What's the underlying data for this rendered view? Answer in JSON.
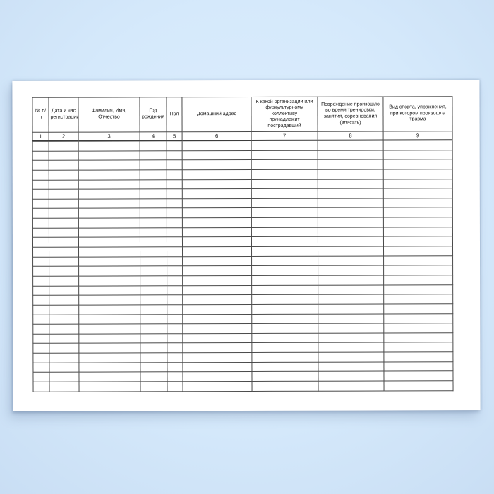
{
  "colors": {
    "backdrop": "#d5e9fb",
    "paper": "#ffffff",
    "grid_line": "#4a4a4a",
    "text": "#141414"
  },
  "table": {
    "columns": [
      {
        "number": "1",
        "header": "№ п/п"
      },
      {
        "number": "2",
        "header": "Дата и час\nрегистрации"
      },
      {
        "number": "3",
        "header": "Фамилия, Имя,\nОтчество"
      },
      {
        "number": "4",
        "header": "Год\nрождения"
      },
      {
        "number": "5",
        "header": "Пол"
      },
      {
        "number": "6",
        "header": "Домашний адрес"
      },
      {
        "number": "7",
        "header": "К какой организации или\nфизкультурному\nколлективу\nпринадлежит\nпострадавший"
      },
      {
        "number": "8",
        "header": "Повреждение произошло\nво время тренировки,\nзанятия, соревнования\n(вписать)"
      },
      {
        "number": "9",
        "header": "Вид спорта, упражнения,\nпри котором произошла\nтравма"
      }
    ],
    "empty_row_count": 26,
    "empty_cell_value": ""
  }
}
